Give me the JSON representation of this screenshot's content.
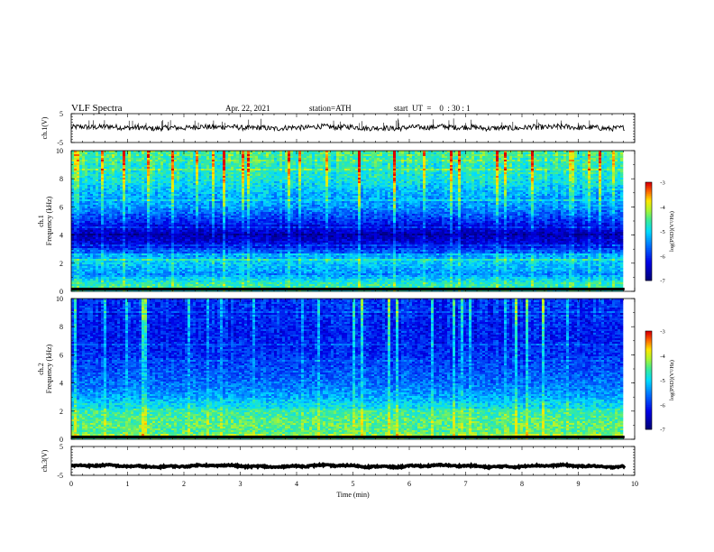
{
  "header": {
    "title": "VLF  Spectra",
    "date": "Apr. 22, 2021",
    "station": "station=ATH",
    "start_ut": "start  UT  =    0  : 30 : 1"
  },
  "chart_data": [
    {
      "type": "line",
      "name": "ch1-waveform",
      "ylabel": "ch.1(V)",
      "xlim": [
        0,
        10
      ],
      "ylim": [
        -5,
        5
      ],
      "yticks": [
        "5",
        "-5"
      ],
      "baseline_v": 0.2,
      "noise_amplitude_v": 0.9
    },
    {
      "type": "heatmap",
      "name": "ch1-spectrogram",
      "ylabel": "ch.1\nFrequency  (kHz)",
      "xlim": [
        0,
        10
      ],
      "data_xmax_min": 9.82,
      "ylim": [
        0,
        10
      ],
      "yticks": [
        "0",
        "2",
        "4",
        "6",
        "8",
        "10"
      ],
      "colorbar": {
        "label": "log(PSD)(V²/Hz)",
        "range": [
          -7,
          -3
        ],
        "ticks": [
          "-3",
          "-4",
          "-5",
          "-6",
          "-7"
        ]
      },
      "profile_khz_logpsd": [
        [
          0,
          -4.8
        ],
        [
          0.5,
          -4.6
        ],
        [
          1.2,
          -5.4
        ],
        [
          2.2,
          -5.0
        ],
        [
          3.0,
          -6.1
        ],
        [
          4.0,
          -6.6
        ],
        [
          5.0,
          -6.0
        ],
        [
          6.0,
          -5.4
        ],
        [
          7.0,
          -5.2
        ],
        [
          8.0,
          -4.8
        ],
        [
          9.0,
          -4.7
        ],
        [
          10.0,
          -4.5
        ]
      ]
    },
    {
      "type": "heatmap",
      "name": "ch2-spectrogram",
      "ylabel": "ch.2\nFrequency  (kHz)",
      "xlim": [
        0,
        10
      ],
      "data_xmax_min": 9.82,
      "ylim": [
        0,
        10
      ],
      "yticks": [
        "0",
        "2",
        "4",
        "6",
        "8",
        "10"
      ],
      "colorbar": {
        "label": "log(PSD)(V²/Hz)",
        "range": [
          -7,
          -3
        ],
        "ticks": [
          "-3",
          "-4",
          "-5",
          "-6",
          "-7"
        ]
      },
      "profile_khz_logpsd": [
        [
          0,
          -4.6
        ],
        [
          1.0,
          -4.4
        ],
        [
          2.0,
          -4.6
        ],
        [
          3.0,
          -5.3
        ],
        [
          4.0,
          -5.6
        ],
        [
          5.0,
          -5.8
        ],
        [
          6.0,
          -6.0
        ],
        [
          7.0,
          -6.1
        ],
        [
          8.0,
          -6.1
        ],
        [
          9.0,
          -6.0
        ],
        [
          10.0,
          -6.0
        ]
      ]
    },
    {
      "type": "line",
      "name": "ch3-waveform",
      "ylabel": "ch.3(V)",
      "xlim": [
        0,
        10
      ],
      "ylim": [
        -5,
        5
      ],
      "yticks": [
        "5",
        "-5"
      ],
      "baseline_v": -1.8,
      "noise_amplitude_v": 0.25,
      "xlabel": "Time  (min)",
      "xticks": [
        "0",
        "1",
        "2",
        "3",
        "4",
        "5",
        "6",
        "7",
        "8",
        "9",
        "10"
      ]
    }
  ]
}
